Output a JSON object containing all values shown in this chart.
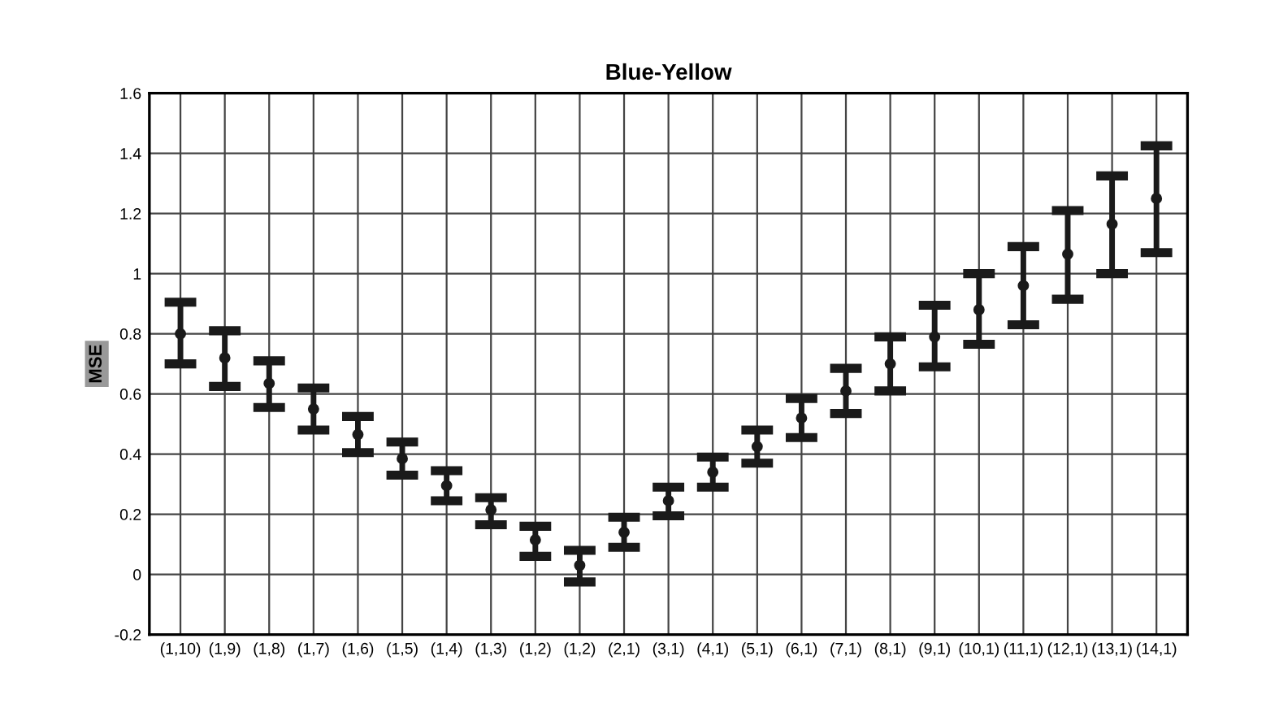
{
  "chart_data": {
    "type": "scatter",
    "title": "Blue-Yellow",
    "ylabel": "MSE",
    "categories": [
      "(1,10)",
      "(1,9)",
      "(1,8)",
      "(1,7)",
      "(1,6)",
      "(1,5)",
      "(1,4)",
      "(1,3)",
      "(1,2)",
      "(1,2)",
      "(2,1)",
      "(3,1)",
      "(4,1)",
      "(5,1)",
      "(6,1)",
      "(7,1)",
      "(8,1)",
      "(9,1)",
      "(10,1)",
      "(11,1)",
      "(12,1)",
      "(13,1)",
      "(14,1)"
    ],
    "series": [
      {
        "color": "#1a1a1a",
        "values": [
          0.8,
          0.72,
          0.635,
          0.55,
          0.465,
          0.385,
          0.295,
          0.215,
          0.115,
          0.03,
          0.14,
          0.245,
          0.34,
          0.425,
          0.52,
          0.61,
          0.7,
          0.79,
          0.88,
          0.96,
          1.065,
          1.165,
          1.25
        ],
        "errors": [
          [
            0.7,
            0.905
          ],
          [
            0.625,
            0.81
          ],
          [
            0.555,
            0.71
          ],
          [
            0.48,
            0.62
          ],
          [
            0.405,
            0.525
          ],
          [
            0.33,
            0.44
          ],
          [
            0.245,
            0.345
          ],
          [
            0.165,
            0.255
          ],
          [
            0.06,
            0.16
          ],
          [
            -0.025,
            0.08
          ],
          [
            0.09,
            0.19
          ],
          [
            0.195,
            0.29
          ],
          [
            0.29,
            0.39
          ],
          [
            0.37,
            0.48
          ],
          [
            0.455,
            0.585
          ],
          [
            0.535,
            0.685
          ],
          [
            0.61,
            0.79
          ],
          [
            0.69,
            0.895
          ],
          [
            0.765,
            1.0
          ],
          [
            0.83,
            1.09
          ],
          [
            0.915,
            1.21
          ],
          [
            1.0,
            1.325
          ],
          [
            1.07,
            1.425
          ]
        ]
      }
    ],
    "ylim": [
      -0.2,
      1.6
    ],
    "yticks": [
      -0.2,
      0,
      0.2,
      0.4,
      0.6,
      0.8,
      1,
      1.2,
      1.4,
      1.6
    ],
    "grid": true,
    "marker": "circle",
    "legend": false
  }
}
